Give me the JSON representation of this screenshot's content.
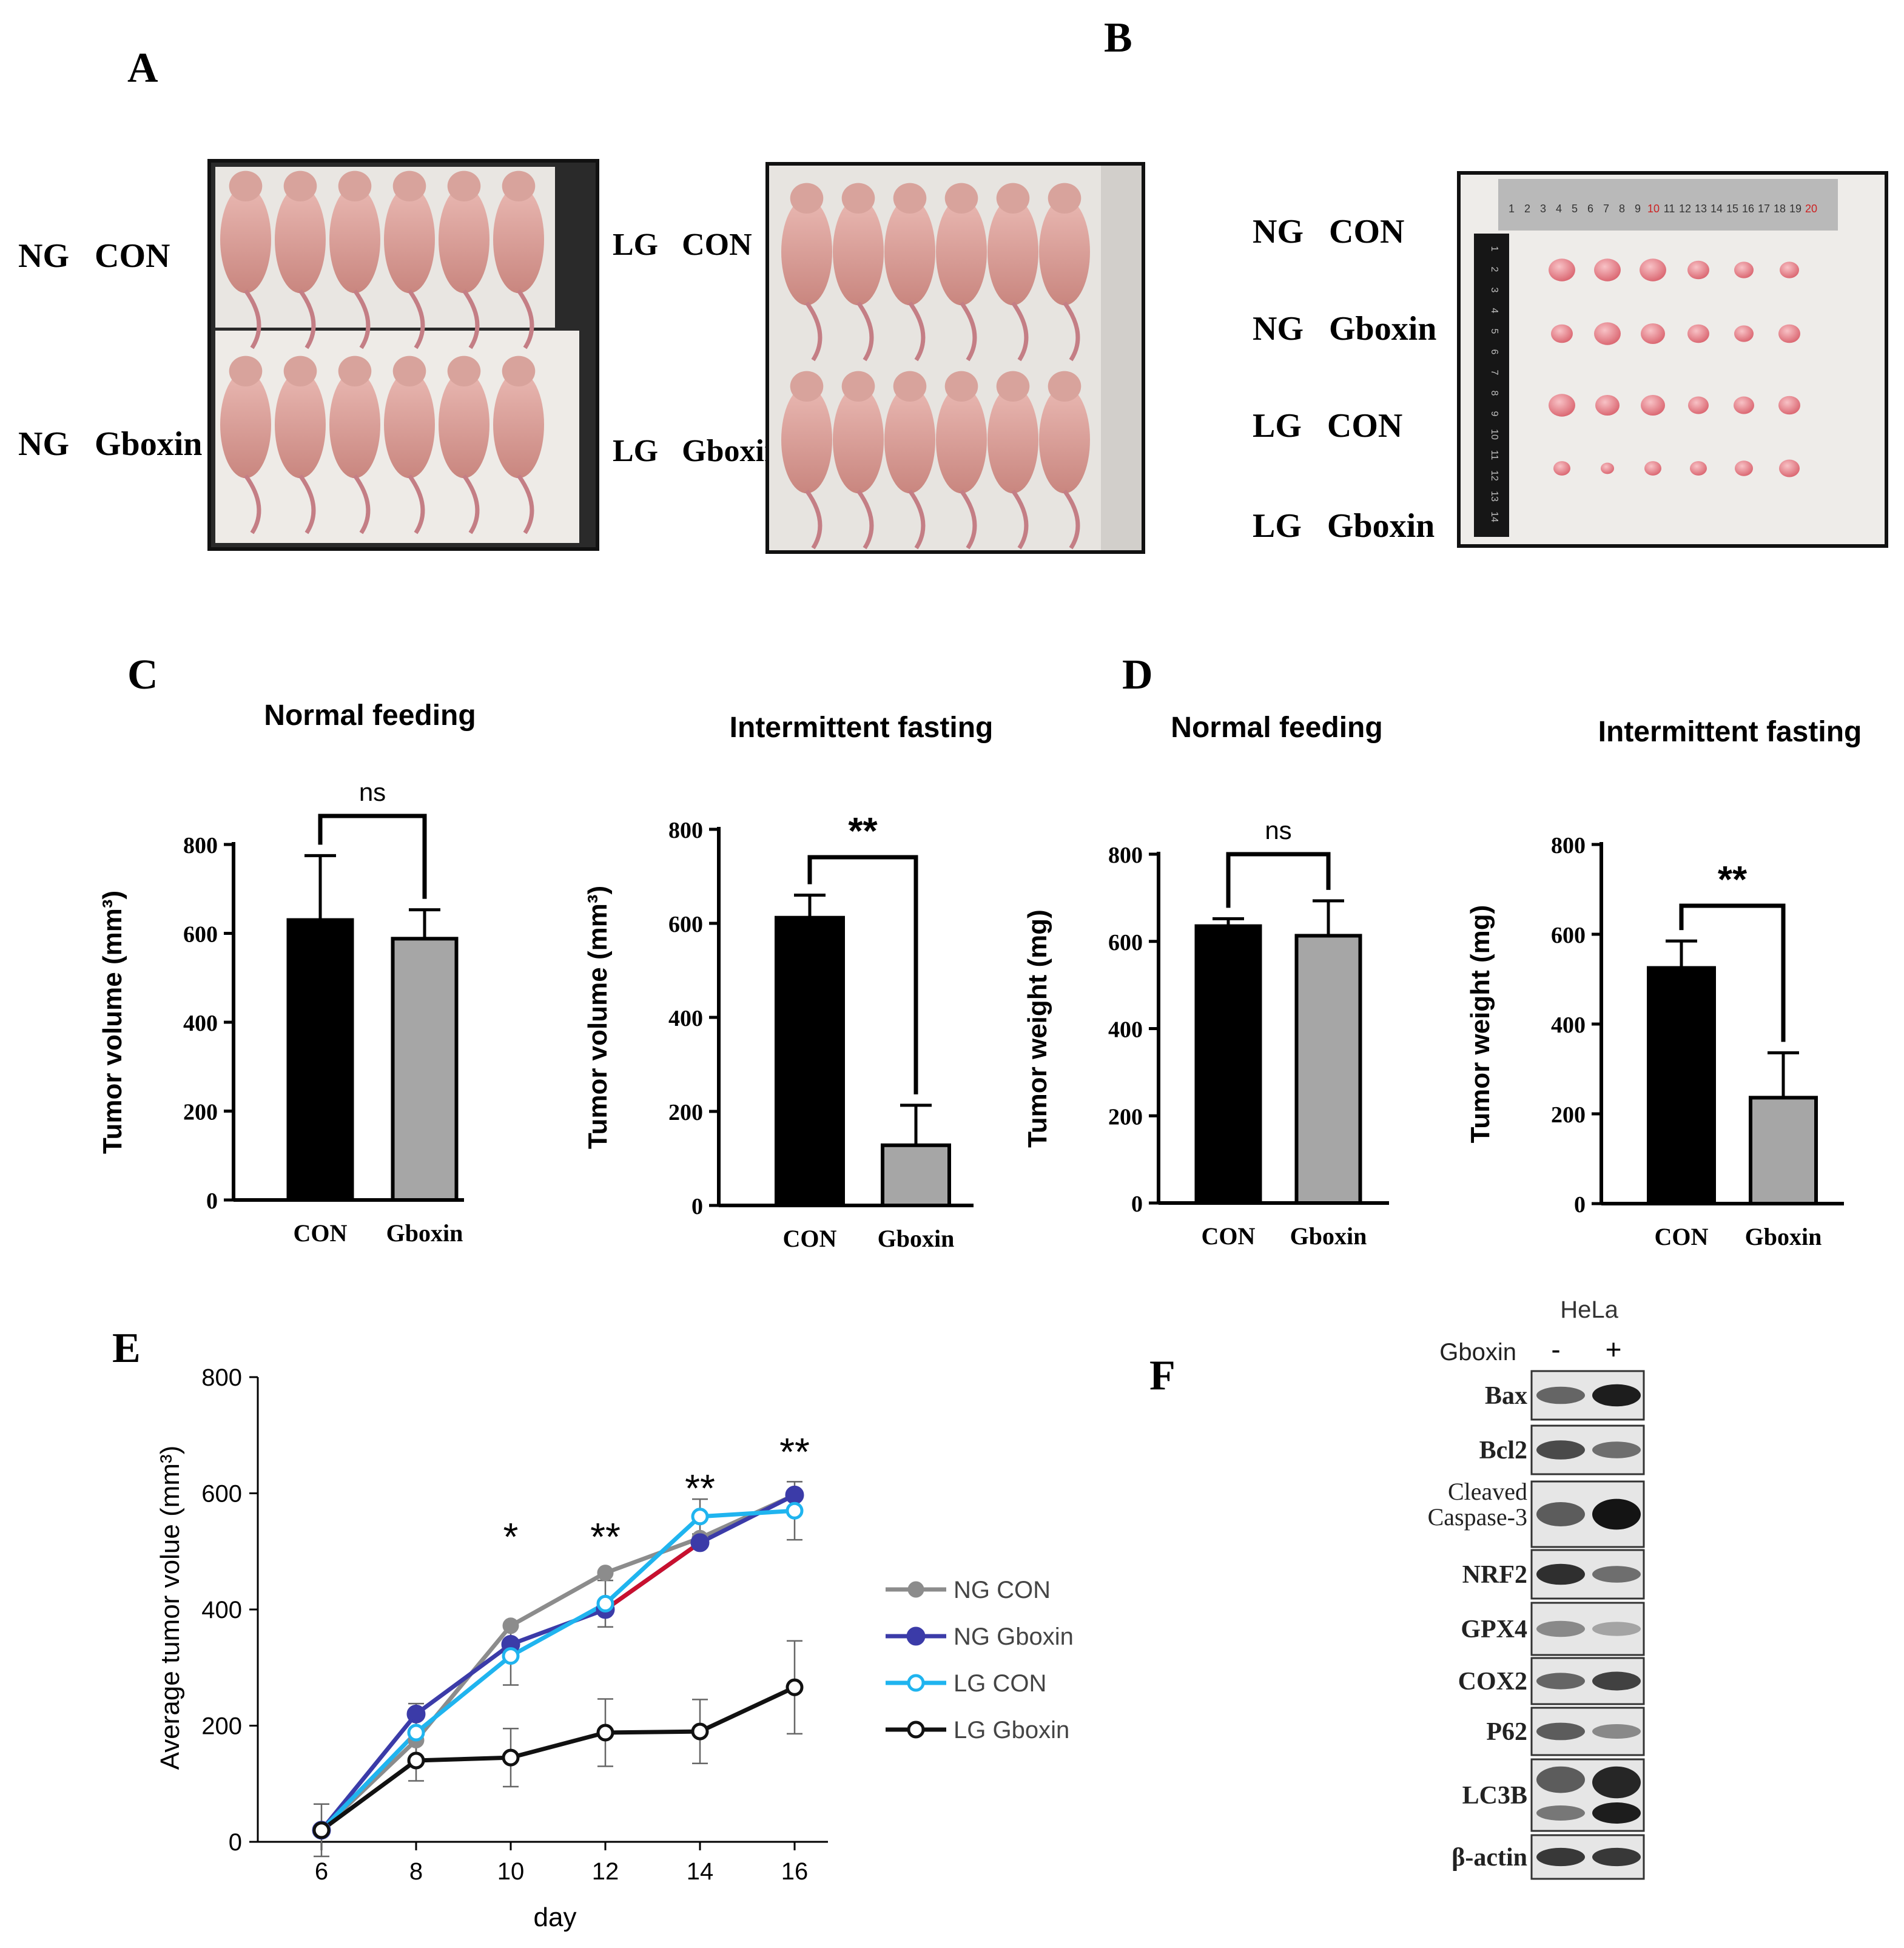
{
  "panel_letters": {
    "a": "A",
    "b": "B",
    "c": "C",
    "d": "D",
    "e": "E",
    "f": "F"
  },
  "panel_a": {
    "left_labels": [
      "NG   CON",
      "NG   Gboxin"
    ],
    "right_labels": [
      "LG   CON",
      "LG   Gboxin"
    ]
  },
  "panel_b": {
    "labels": [
      "NG   CON",
      "NG   Gboxin",
      "LG   CON",
      "LG   Gboxin"
    ],
    "ruler_numbers": [
      "1",
      "2",
      "3",
      "4",
      "5",
      "6",
      "7",
      "8",
      "9",
      "10",
      "11",
      "12",
      "13",
      "14",
      "15",
      "16",
      "17",
      "18",
      "19",
      "20"
    ],
    "vruler_numbers": [
      "1",
      "2",
      "3",
      "4",
      "5",
      "6",
      "7",
      "8",
      "9",
      "10",
      "11",
      "12",
      "13",
      "14"
    ]
  },
  "colors": {
    "black_bar": "#000000",
    "gray_bar": "#a6a6a6",
    "ng_con": "#8c8c8c",
    "ng_gboxin": "#3b3ba8",
    "lg_con": "#1fb4ef",
    "lg_gboxin": "#111111",
    "segment_red": "#c8102e"
  },
  "chart_data": [
    {
      "id": "C1",
      "type": "bar",
      "title": "Normal feeding",
      "categories": [
        "CON",
        "Gboxin"
      ],
      "values": [
        630,
        588
      ],
      "errors": [
        145,
        65
      ],
      "ylabel": "Tumor volume (mm³)",
      "ylim": [
        0,
        800
      ],
      "yticks": [
        "0",
        "200",
        "400",
        "600",
        "800"
      ],
      "significance": "ns"
    },
    {
      "id": "C2",
      "type": "bar",
      "title": "Intermittent fasting",
      "categories": [
        "CON",
        "Gboxin"
      ],
      "values": [
        612,
        128
      ],
      "errors": [
        48,
        85
      ],
      "ylabel": "Tumor volume (mm³)",
      "ylim": [
        0,
        800
      ],
      "yticks": [
        "0",
        "200",
        "400",
        "600",
        "800"
      ],
      "significance": "**"
    },
    {
      "id": "D1",
      "type": "bar",
      "title": "Normal feeding",
      "categories": [
        "CON",
        "Gboxin"
      ],
      "values": [
        635,
        613
      ],
      "errors": [
        17,
        80
      ],
      "ylabel": "Tumor weight (mg)",
      "ylim": [
        0,
        800
      ],
      "yticks": [
        "0",
        "200",
        "400",
        "600",
        "800"
      ],
      "significance": "ns"
    },
    {
      "id": "D2",
      "type": "bar",
      "title": "Intermittent fasting",
      "categories": [
        "CON",
        "Gboxin"
      ],
      "values": [
        525,
        236
      ],
      "errors": [
        60,
        100
      ],
      "ylabel": "Tumor weight (mg)",
      "ylim": [
        0,
        800
      ],
      "yticks": [
        "0",
        "200",
        "400",
        "600",
        "800"
      ],
      "significance": "**"
    },
    {
      "id": "E",
      "type": "line",
      "x": [
        6,
        8,
        10,
        12,
        14,
        16
      ],
      "xlabel": "day",
      "ylabel": "Average tumor volue (mm³)",
      "ylim": [
        0,
        800
      ],
      "xticks": [
        "6",
        "8",
        "10",
        "12",
        "14",
        "16"
      ],
      "yticks": [
        "0",
        "200",
        "400",
        "600",
        "800"
      ],
      "series": [
        {
          "name": "NG CON",
          "values": [
            20,
            175,
            372,
            463,
            523,
            597
          ],
          "errors": [
            0,
            0,
            0,
            0,
            0,
            0
          ]
        },
        {
          "name": "NG Gboxin",
          "values": [
            20,
            220,
            340,
            400,
            515,
            597
          ],
          "errors": [
            0,
            0,
            0,
            0,
            0,
            0
          ]
        },
        {
          "name": "LG CON",
          "values": [
            20,
            188,
            320,
            410,
            560,
            570
          ],
          "errors": [
            45,
            50,
            50,
            40,
            30,
            50
          ]
        },
        {
          "name": "LG Gboxin",
          "values": [
            20,
            140,
            145,
            188,
            190,
            266
          ],
          "errors": [
            0,
            35,
            50,
            58,
            55,
            80
          ]
        }
      ],
      "significance_marks": [
        {
          "x": 10,
          "label": "*"
        },
        {
          "x": 12,
          "label": "**"
        },
        {
          "x": 14,
          "label": "**"
        },
        {
          "x": 16,
          "label": "**"
        }
      ]
    }
  ],
  "panel_f": {
    "cell_line": "HeLa",
    "treatment_label": "Gboxin",
    "lanes": [
      "-",
      "+"
    ],
    "proteins": [
      {
        "name": "Bax",
        "lane1": 0.55,
        "lane2": 0.95
      },
      {
        "name": "Bcl2",
        "lane1": 0.7,
        "lane2": 0.5
      },
      {
        "name": "Cleaved\nCaspase-3",
        "lane1": 0.6,
        "lane2": 1.0
      },
      {
        "name": "NRF2",
        "lane1": 0.85,
        "lane2": 0.5
      },
      {
        "name": "GPX4",
        "lane1": 0.35,
        "lane2": 0.2
      },
      {
        "name": "COX2",
        "lane1": 0.55,
        "lane2": 0.75
      },
      {
        "name": "P62",
        "lane1": 0.6,
        "lane2": 0.35
      },
      {
        "name": "LC3B",
        "lane1": 0.6,
        "lane2": 0.9
      },
      {
        "name": "β-actin",
        "lane1": 0.8,
        "lane2": 0.8
      }
    ]
  }
}
